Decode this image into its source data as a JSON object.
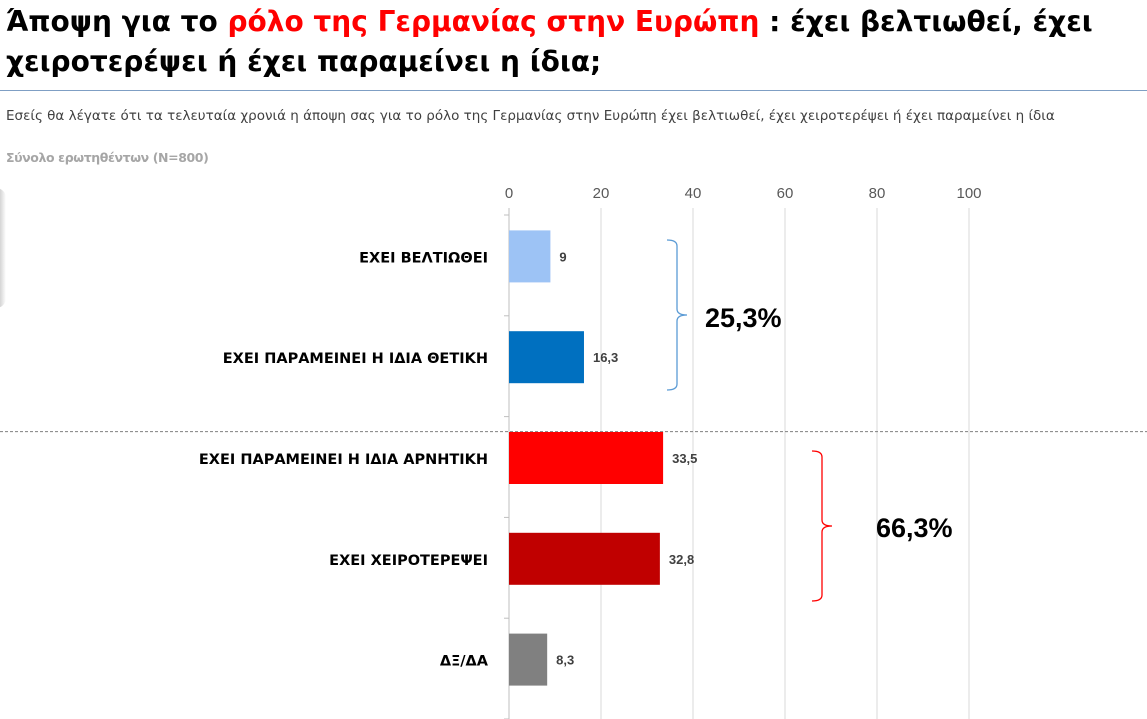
{
  "title": {
    "part1": "Άποψη για το ",
    "highlight": "ρόλο της Γερμανίας στην Ευρώπη",
    "part2": " : έχει βελτιωθεί, έχει χειροτερέψει ή έχει παραμείνει η ίδια;"
  },
  "question": "Εσείς  θα λέγατε ότι τα τελευταία χρονιά η άποψη σας για το ρόλο της Γερμανίας στην Ευρώπη έχει βελτιωθεί, έχει χειροτερέψει ή έχει παραμείνει η ίδια",
  "base": "Σύνολο ερωτηθέντων (N=800)",
  "colors": {
    "title_highlight": "#ff0000",
    "group_positive_bracket": "#5b9bd5",
    "group_negative_bracket": "#ff0000"
  },
  "chart_data": {
    "type": "bar",
    "orientation": "horizontal",
    "categories": [
      "ΕΧΕΙ ΒΕΛΤΙΩΘΕΙ",
      "ΕΧΕΙ ΠΑΡΑΜΕΙΝΕΙ Η ΙΔΙΑ ΘΕΤΙΚΗ",
      "ΕΧΕΙ ΠΑΡΑΜΕΙΝΕΙ Η ΙΔΙΑ ΑΡΝΗΤΙΚΗ",
      "ΕΧΕΙ ΧΕΙΡΟΤΕΡΕΨΕΙ",
      "ΔΞ/ΔΑ"
    ],
    "values": [
      9,
      16.3,
      33.5,
      32.8,
      8.3
    ],
    "value_labels": [
      "9",
      "16,3",
      "33,5",
      "32,8",
      "8,3"
    ],
    "bar_colors": [
      "#9dc3f5",
      "#0070c0",
      "#ff0000",
      "#c00000",
      "#808080"
    ],
    "xlim": [
      0,
      100
    ],
    "xticks": [
      0,
      20,
      40,
      60,
      80,
      100
    ],
    "xtick_labels": [
      "0",
      "20",
      "40",
      "60",
      "80",
      "100"
    ],
    "x_axis_position": "top",
    "grid": true,
    "groups": [
      {
        "label": "25,3%",
        "categories": [
          0,
          1
        ],
        "color": "#5b9bd5"
      },
      {
        "label": "66,3%",
        "categories": [
          2,
          3
        ],
        "color": "#ff0000"
      }
    ]
  }
}
